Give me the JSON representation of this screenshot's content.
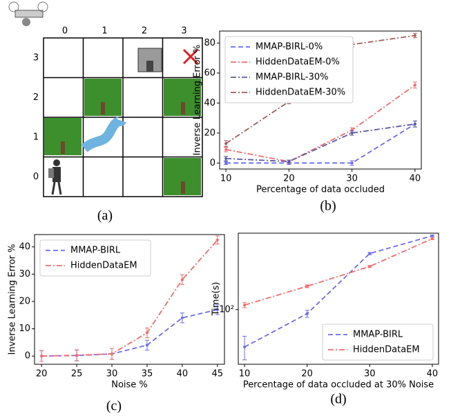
{
  "grid": {
    "col_labels": [
      "0",
      "1",
      "2",
      "3"
    ],
    "row_labels": [
      "3",
      "2",
      "1",
      "0"
    ]
  },
  "captions": [
    "(a)",
    "(b)",
    "(c)",
    "(d)"
  ],
  "chart_data": [
    {
      "type": "line",
      "xlabel": "Percentage of data occluded",
      "ylabel": "Inverse Learning Error %",
      "x": [
        10,
        20,
        30,
        40
      ],
      "xlim": [
        9,
        41
      ],
      "ylim": [
        -4,
        88
      ],
      "xticks": [
        10,
        20,
        30,
        40
      ],
      "yticks": [
        0,
        20,
        40,
        60,
        80
      ],
      "legend": "upper left",
      "series": [
        {
          "name": "MMAP-BIRL-0%",
          "color": "#6b6bf5",
          "dash": "dashed",
          "values": [
            0,
            0,
            0,
            26
          ],
          "errors": [
            1,
            1,
            1.5,
            2
          ]
        },
        {
          "name": "HiddenDataEM-0%",
          "color": "#f56b6b",
          "dash": "dashdot",
          "values": [
            9,
            1,
            22,
            52
          ],
          "errors": [
            1.5,
            1,
            1.5,
            2
          ]
        },
        {
          "name": "MMAP-BIRL-30%",
          "color": "#5a5aa8",
          "dash": "dashdot",
          "values": [
            3,
            1,
            20,
            26
          ],
          "errors": [
            1.5,
            1,
            1.5,
            2
          ]
        },
        {
          "name": "HiddenDataEM-30%",
          "color": "#a85a5a",
          "dash": "dashdot",
          "values": [
            13,
            41,
            79,
            85
          ],
          "errors": [
            2,
            1.5,
            1.5,
            1.5
          ]
        }
      ]
    },
    {
      "type": "line",
      "xlabel": "Noise %",
      "ylabel": "Inverse Learning Error %",
      "x": [
        20,
        25,
        30,
        35,
        40,
        45
      ],
      "xlim": [
        19,
        46
      ],
      "ylim": [
        -3,
        44.5
      ],
      "xticks": [
        20,
        25,
        30,
        35,
        40,
        45
      ],
      "yticks": [
        0,
        10,
        20,
        30,
        40
      ],
      "legend": "upper left",
      "series": [
        {
          "name": "MMAP-BIRL",
          "color": "#6b6bf5",
          "dash": "dashed",
          "values": [
            0,
            0.2,
            0.8,
            4,
            14,
            17
          ],
          "errors": [
            2,
            2,
            2,
            1.8,
            1.8,
            1.8
          ]
        },
        {
          "name": "HiddenDataEM",
          "color": "#f56b6b",
          "dash": "dashdot",
          "values": [
            0,
            0.3,
            0.8,
            8.5,
            28,
            42.5
          ],
          "errors": [
            2,
            2,
            2,
            1.8,
            1.8,
            1.5
          ]
        }
      ]
    },
    {
      "type": "line",
      "log_y": true,
      "xlabel": "Percentage of data occluded at 30% Noise",
      "ylabel": "Time(s)",
      "x": [
        10,
        20,
        30,
        40
      ],
      "xlim": [
        9,
        41
      ],
      "ylim": [
        44,
        315
      ],
      "xticks": [
        10,
        20,
        30,
        40
      ],
      "yticks": [
        {
          "value": 100,
          "label": "10²"
        }
      ],
      "legend": "lower right",
      "series": [
        {
          "name": "MMAP-BIRL",
          "color": "#6b6bf5",
          "dash": "dashed",
          "values": [
            57,
            94,
            232,
            303
          ],
          "errors": [
            10,
            5,
            4,
            4
          ]
        },
        {
          "name": "HiddenDataEM",
          "color": "#f56b6b",
          "dash": "dashdot",
          "values": [
            107,
            142,
            191,
            290
          ],
          "errors": [
            4,
            3,
            3,
            4
          ]
        }
      ]
    }
  ]
}
